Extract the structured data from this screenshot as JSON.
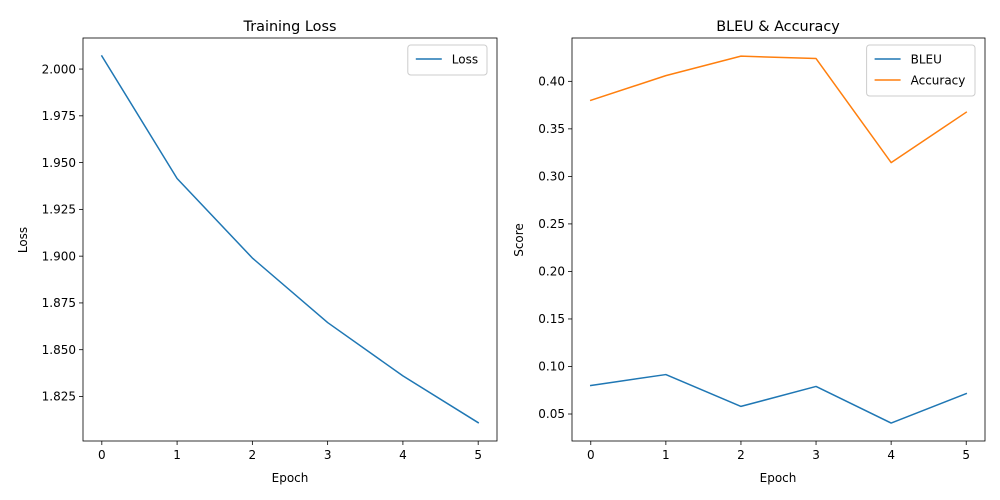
{
  "chart_data": [
    {
      "type": "line",
      "title": "Training Loss",
      "xlabel": "Epoch",
      "ylabel": "Loss",
      "x": [
        0,
        1,
        2,
        3,
        4,
        5
      ],
      "xticks": [
        "0",
        "1",
        "2",
        "3",
        "4",
        "5"
      ],
      "xlim": [
        -0.25,
        5.25
      ],
      "ylim": [
        1.8012,
        2.0166
      ],
      "yticks": [
        "1.825",
        "1.850",
        "1.875",
        "1.900",
        "1.925",
        "1.950",
        "1.975",
        "2.000"
      ],
      "ytick_values": [
        1.825,
        1.85,
        1.875,
        1.9,
        1.925,
        1.95,
        1.975,
        2.0
      ],
      "grid": false,
      "legend_position": "upper right",
      "series": [
        {
          "name": "Loss",
          "color": "#1f77b4",
          "values": [
            2.007,
            1.9415,
            1.899,
            1.8645,
            1.836,
            1.811
          ]
        }
      ]
    },
    {
      "type": "line",
      "title": "BLEU & Accuracy",
      "xlabel": "Epoch",
      "ylabel": "Score",
      "x": [
        0,
        1,
        2,
        3,
        4,
        5
      ],
      "xticks": [
        "0",
        "1",
        "2",
        "3",
        "4",
        "5"
      ],
      "xlim": [
        -0.25,
        5.25
      ],
      "ylim": [
        0.0216,
        0.4456
      ],
      "yticks": [
        "0.05",
        "0.10",
        "0.15",
        "0.20",
        "0.25",
        "0.30",
        "0.35",
        "0.40"
      ],
      "ytick_values": [
        0.05,
        0.1,
        0.15,
        0.2,
        0.25,
        0.3,
        0.35,
        0.4
      ],
      "grid": false,
      "legend_position": "upper right",
      "series": [
        {
          "name": "BLEU",
          "color": "#1f77b4",
          "values": [
            0.08,
            0.0915,
            0.058,
            0.079,
            0.0405,
            0.0715
          ]
        },
        {
          "name": "Accuracy",
          "color": "#ff7f0e",
          "values": [
            0.38,
            0.406,
            0.4265,
            0.424,
            0.3145,
            0.3675
          ]
        }
      ]
    }
  ]
}
